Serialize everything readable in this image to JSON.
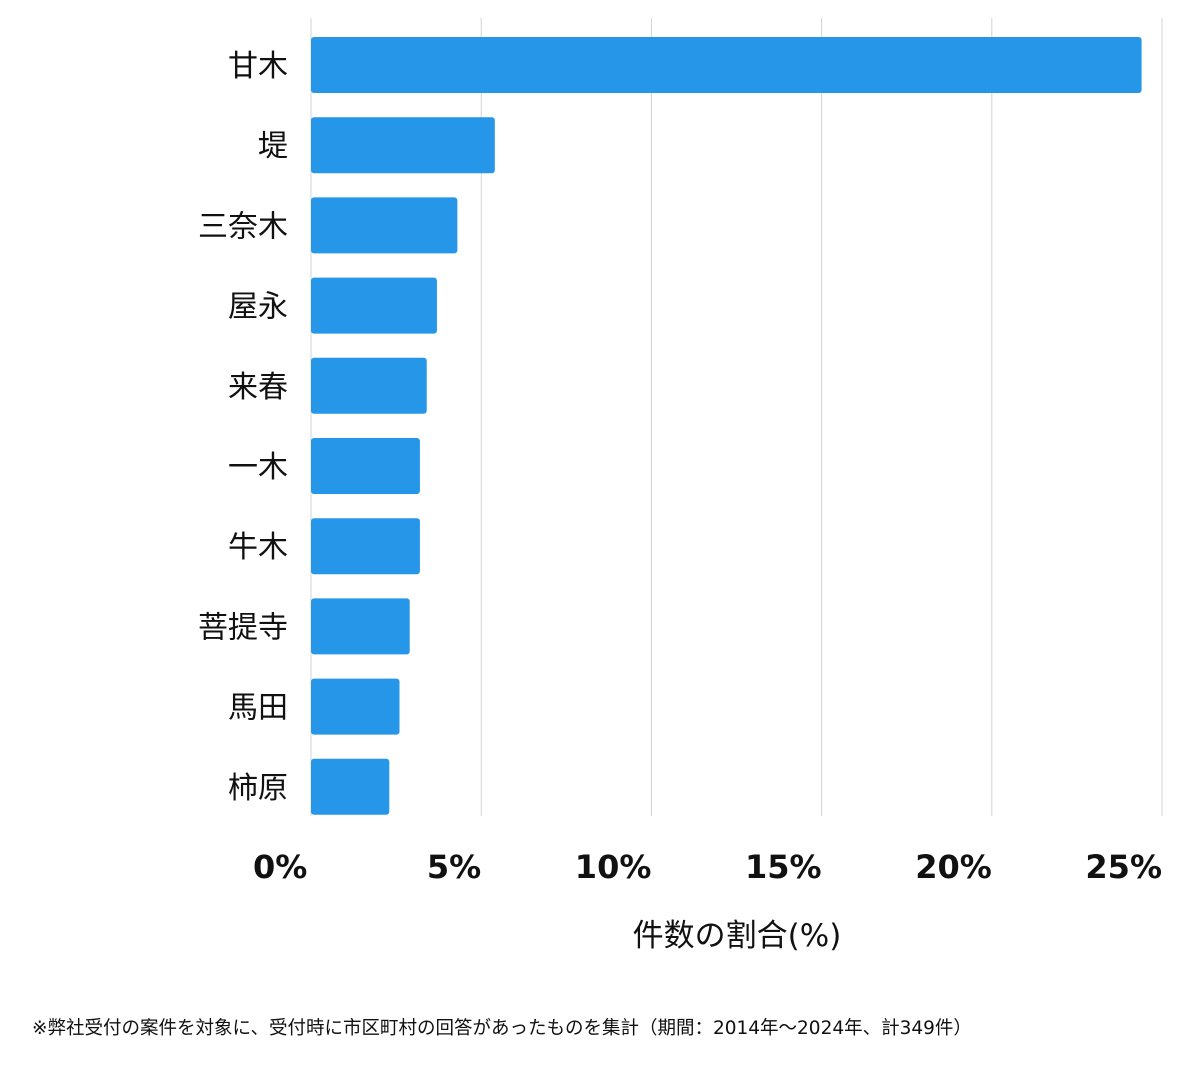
{
  "chart_data": {
    "type": "bar",
    "orientation": "horizontal",
    "categories": [
      "甘木",
      "堤",
      "三奈木",
      "屋永",
      "来春",
      "一木",
      "牛木",
      "菩提寺",
      "馬田",
      "柿原"
    ],
    "values": [
      24.4,
      5.4,
      4.3,
      3.7,
      3.4,
      3.2,
      3.2,
      2.9,
      2.6,
      2.3
    ],
    "x_ticks": [
      0,
      5,
      10,
      15,
      20,
      25
    ],
    "x_tick_labels": [
      "0%",
      "5%",
      "10%",
      "15%",
      "20%",
      "25%"
    ],
    "xlim": [
      0,
      25
    ],
    "xlabel": "件数の割合(%)",
    "ylabel": "",
    "title": "",
    "grid": "vertical",
    "legend": "none",
    "bar_color": "#2696e8",
    "grid_color": "#d3d3d3"
  },
  "footnote": "※弊社受付の案件を対象に、受付時に市区町村の回答があったものを集計（期間：2014年～2024年、計349件）"
}
